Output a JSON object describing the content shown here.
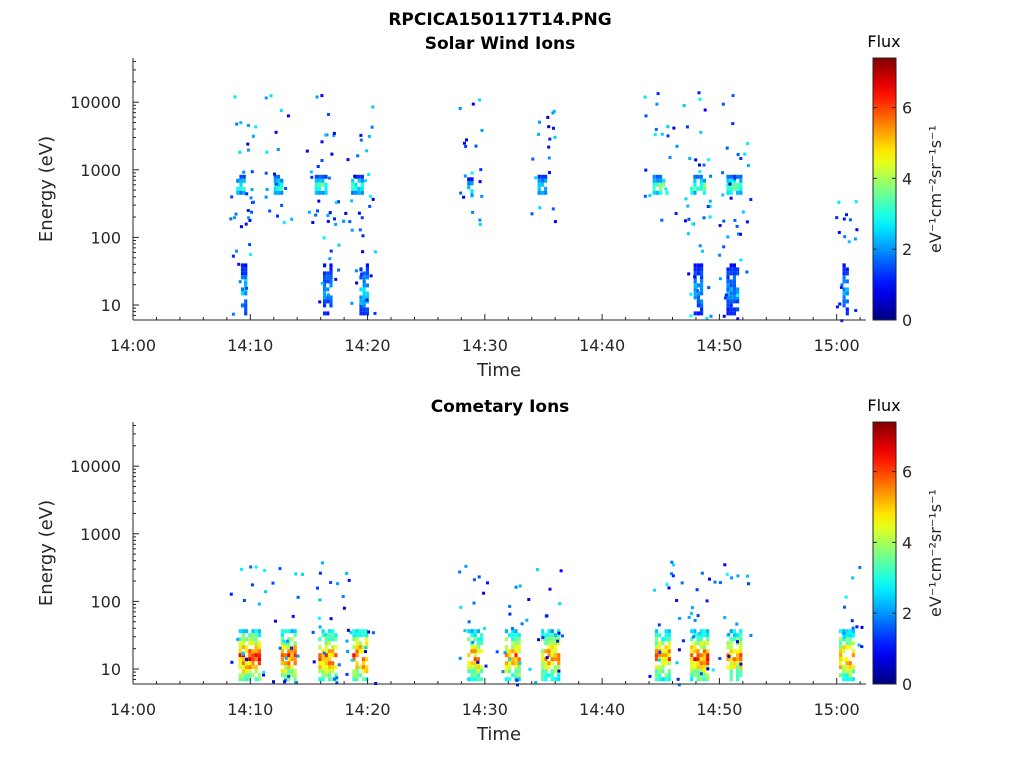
{
  "page": {
    "title": "RPCICA150117T14.PNG"
  },
  "chart_data": [
    {
      "type": "heatmap",
      "title": "Solar Wind Ions",
      "xlabel": "Time",
      "ylabel": "Energy (eV)",
      "x_tick_labels": [
        "14:00",
        "14:10",
        "14:20",
        "14:30",
        "14:40",
        "14:50",
        "15:00"
      ],
      "x_range_minutes": [
        0,
        62.5
      ],
      "y_scale": "log",
      "y_range": [
        6,
        45000
      ],
      "y_ticks": [
        10,
        100,
        1000,
        10000
      ],
      "y_tick_labels": [
        "10",
        "100",
        "1000",
        "10000"
      ],
      "colorbar": {
        "label_top": "Flux",
        "units": "eV⁻¹cm⁻²sr⁻¹s⁻¹",
        "range": [
          0,
          7.4
        ],
        "ticks": [
          0,
          2,
          4,
          6
        ],
        "tick_labels": [
          "0",
          "2",
          "4",
          "6"
        ],
        "colormap": "jet"
      },
      "clusters": [
        {
          "t_start": 8.8,
          "t_end": 9.6,
          "e_center": 600,
          "peak": 3.4
        },
        {
          "t_start": 12.0,
          "t_end": 12.8,
          "e_center": 600,
          "peak": 3.6
        },
        {
          "t_start": 15.5,
          "t_end": 16.4,
          "e_center": 600,
          "peak": 3.8
        },
        {
          "t_start": 18.6,
          "t_end": 19.6,
          "e_center": 600,
          "peak": 3.5
        },
        {
          "t_start": 28.5,
          "t_end": 29.0,
          "e_center": 550,
          "peak": 2.8
        },
        {
          "t_start": 34.5,
          "t_end": 35.2,
          "e_center": 600,
          "peak": 3.0
        },
        {
          "t_start": 44.3,
          "t_end": 45.5,
          "e_center": 600,
          "peak": 4.0
        },
        {
          "t_start": 47.5,
          "t_end": 48.7,
          "e_center": 600,
          "peak": 4.0
        },
        {
          "t_start": 50.6,
          "t_end": 51.8,
          "e_center": 600,
          "peak": 3.8
        },
        {
          "t_start": 9.2,
          "t_end": 9.5,
          "e_center": 17,
          "peak": 2.5
        },
        {
          "t_start": 16.2,
          "t_end": 16.8,
          "e_center": 17,
          "peak": 2.2
        },
        {
          "t_start": 19.3,
          "t_end": 19.9,
          "e_center": 17,
          "peak": 2.6
        },
        {
          "t_start": 47.8,
          "t_end": 48.4,
          "e_center": 17,
          "peak": 2.4
        },
        {
          "t_start": 50.6,
          "t_end": 51.5,
          "e_center": 17,
          "peak": 2.3
        },
        {
          "t_start": 60.5,
          "t_end": 61.0,
          "e_center": 17,
          "peak": 2.4
        }
      ]
    },
    {
      "type": "heatmap",
      "title": "Cometary Ions",
      "xlabel": "Time",
      "ylabel": "Energy (eV)",
      "x_tick_labels": [
        "14:00",
        "14:10",
        "14:20",
        "14:30",
        "14:40",
        "14:50",
        "15:00"
      ],
      "x_range_minutes": [
        0,
        62.5
      ],
      "y_scale": "log",
      "y_range": [
        6,
        45000
      ],
      "y_ticks": [
        10,
        100,
        1000,
        10000
      ],
      "y_tick_labels": [
        "10",
        "100",
        "1000",
        "10000"
      ],
      "colorbar": {
        "label_top": "Flux",
        "units": "eV⁻¹cm⁻²sr⁻¹s⁻¹",
        "range": [
          0,
          7.4
        ],
        "ticks": [
          0,
          2,
          4,
          6
        ],
        "tick_labels": [
          "0",
          "2",
          "4",
          "6"
        ],
        "colormap": "jet"
      },
      "clusters": [
        {
          "t_start": 9.0,
          "t_end": 10.8,
          "e_center": 16,
          "peak": 6.5
        },
        {
          "t_start": 12.6,
          "t_end": 13.8,
          "e_center": 16,
          "peak": 6.3
        },
        {
          "t_start": 15.8,
          "t_end": 17.2,
          "e_center": 16,
          "peak": 6.2
        },
        {
          "t_start": 18.7,
          "t_end": 20.0,
          "e_center": 16,
          "peak": 6.6
        },
        {
          "t_start": 28.5,
          "t_end": 29.6,
          "e_center": 16,
          "peak": 5.8
        },
        {
          "t_start": 31.7,
          "t_end": 33.0,
          "e_center": 16,
          "peak": 6.0
        },
        {
          "t_start": 34.8,
          "t_end": 36.2,
          "e_center": 16,
          "peak": 5.8
        },
        {
          "t_start": 44.5,
          "t_end": 45.7,
          "e_center": 16,
          "peak": 5.9
        },
        {
          "t_start": 47.5,
          "t_end": 48.9,
          "e_center": 16,
          "peak": 6.4
        },
        {
          "t_start": 50.6,
          "t_end": 51.9,
          "e_center": 16,
          "peak": 6.0
        },
        {
          "t_start": 60.2,
          "t_end": 61.4,
          "e_center": 16,
          "peak": 6.1
        }
      ]
    }
  ]
}
